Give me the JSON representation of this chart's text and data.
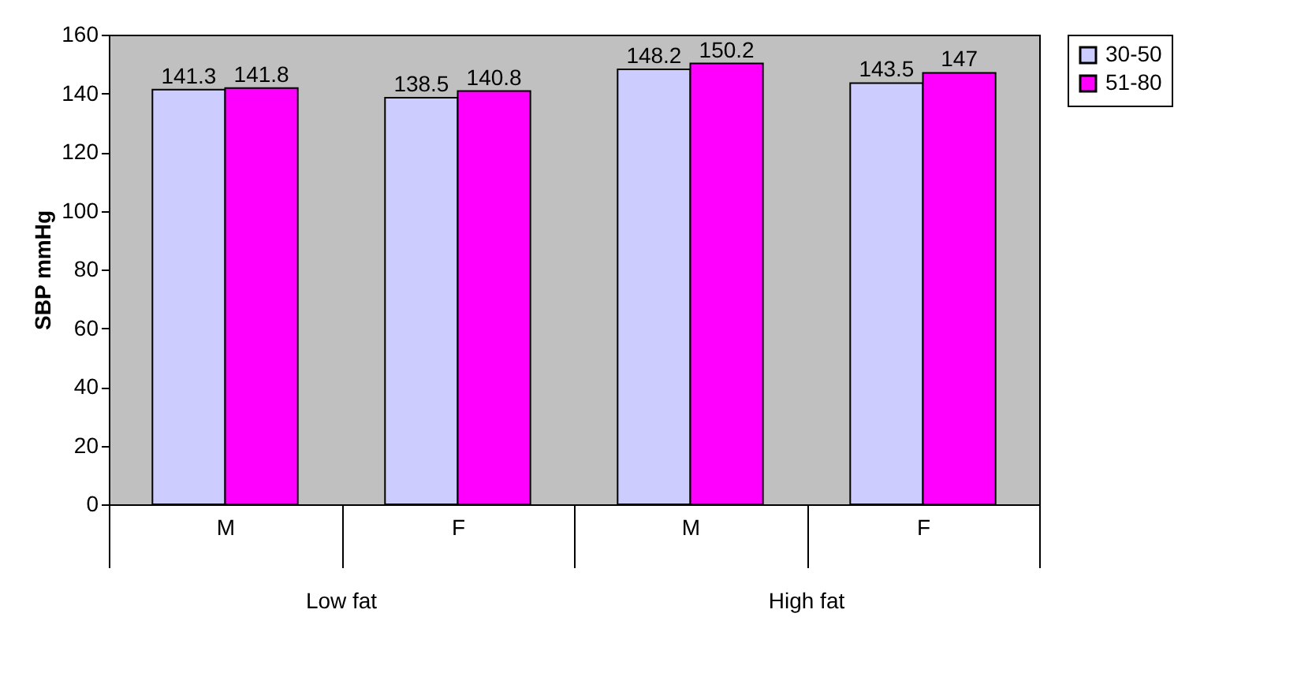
{
  "chart_data": {
    "type": "bar",
    "ylabel": "SBP mmHg",
    "categories": [
      "M",
      "F",
      "M",
      "F"
    ],
    "series": [
      {
        "name": "30-50",
        "color": "#ccccff",
        "values": [
          141.3,
          138.5,
          148.2,
          143.5
        ]
      },
      {
        "name": "51-80",
        "color": "#ff00ff",
        "values": [
          141.8,
          140.8,
          150.2,
          147
        ]
      }
    ],
    "ylim": [
      0,
      160
    ],
    "yticks": [
      0,
      20,
      40,
      60,
      80,
      100,
      120,
      140,
      160
    ],
    "data_labels": true,
    "grid": false,
    "legend": "right",
    "annotations": [
      "Low fat",
      "High fat"
    ]
  }
}
